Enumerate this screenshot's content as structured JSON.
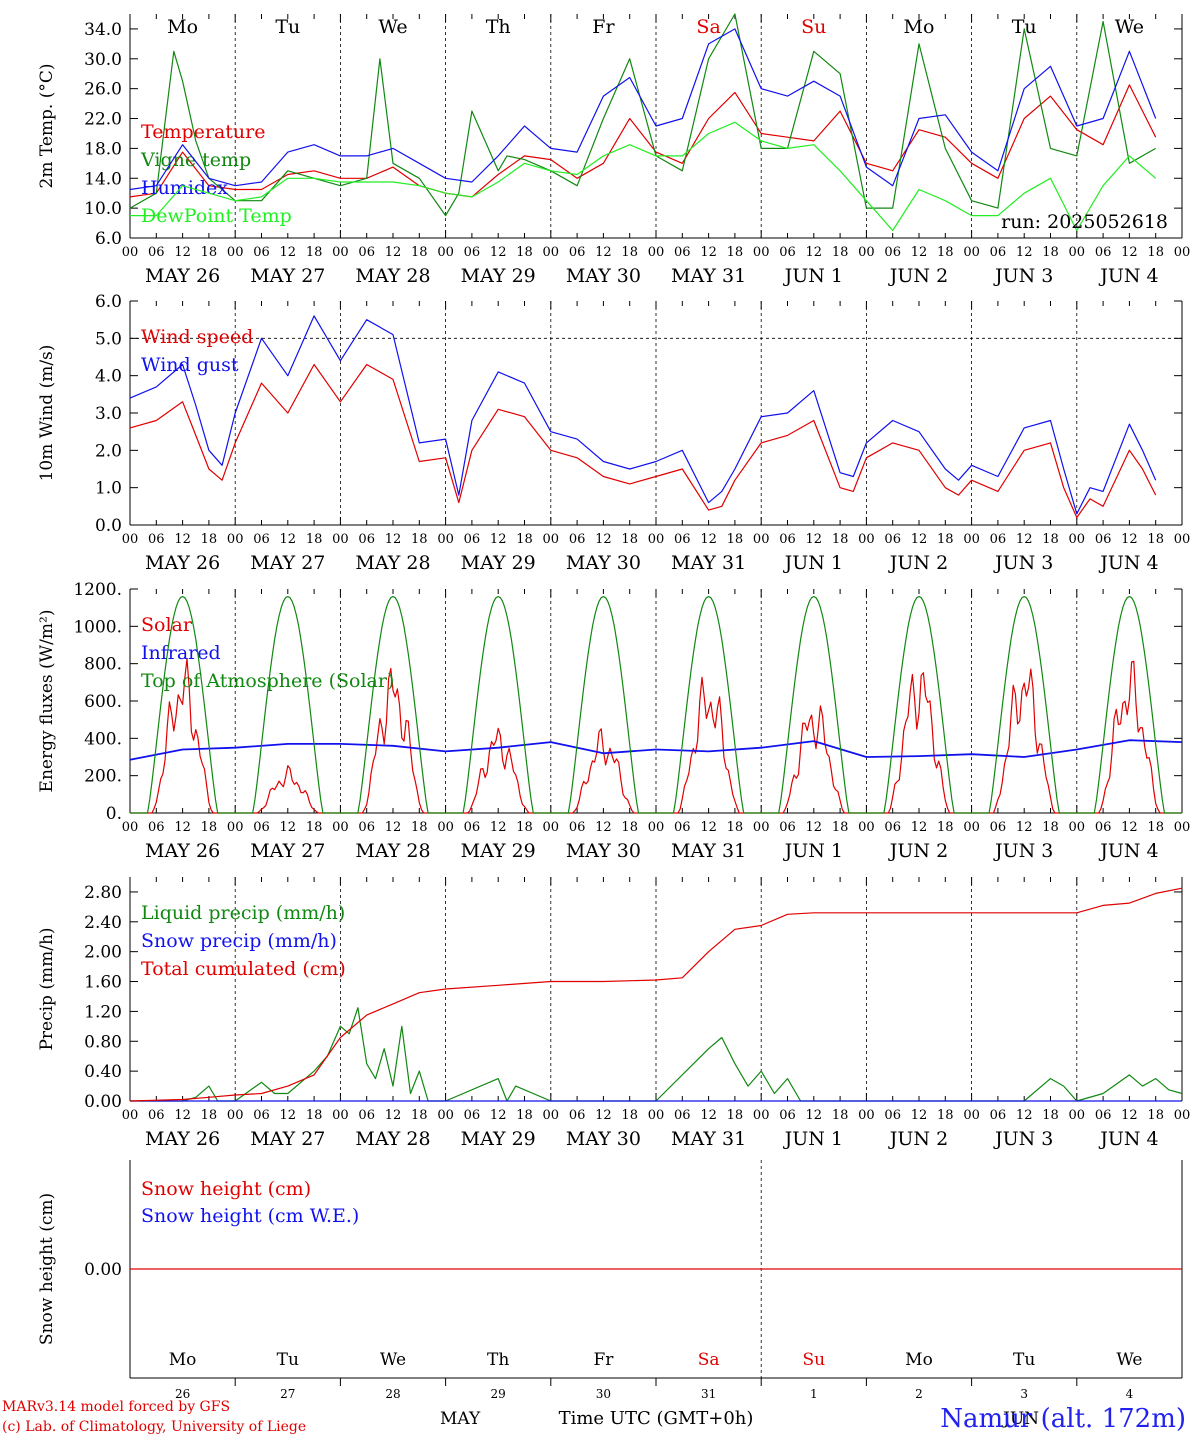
{
  "page": {
    "credit_line1": "MARv3.14 model forced by GFS",
    "credit_line2": "(c) Lab. of Climatology, University of Liege",
    "station": "Namur (alt. 172m)",
    "xlabel": "Time UTC (GMT+0h)",
    "run": "run: 2025052618"
  },
  "days": {
    "names": [
      "Mo",
      "Tu",
      "We",
      "Th",
      "Fr",
      "Sa",
      "Su",
      "Mo",
      "Tu",
      "We"
    ],
    "weekend_color": "#e00000",
    "normal_color": "#000000",
    "weekend_index": [
      5,
      6
    ],
    "dates": [
      "MAY 26",
      "MAY 27",
      "MAY 28",
      "MAY 29",
      "MAY 30",
      "MAY 31",
      "JUN  1",
      "JUN  2",
      "JUN  3",
      "JUN  4"
    ],
    "hour_ticks": [
      "00",
      "06",
      "12",
      "18"
    ],
    "final_tick": "00",
    "bottom_numbers": [
      "26",
      "27",
      "28",
      "29",
      "30",
      "31",
      "1",
      "2",
      "3",
      "4"
    ],
    "bottom_month_left": "MAY",
    "bottom_month_right": "JUN"
  },
  "chart_data": [
    {
      "id": "temp",
      "type": "line",
      "ylabel": "2m Temp. (°C)",
      "ylim": [
        6.0,
        36.0
      ],
      "yticks": [
        6.0,
        10.0,
        14.0,
        18.0,
        22.0,
        26.0,
        30.0,
        34.0
      ],
      "ytick_labels": [
        "6.0",
        "10.0",
        "14.0",
        "18.0",
        "22.0",
        "26.0",
        "30.0",
        "34.0"
      ],
      "show_day_names": true,
      "x_unit": "hours since MAY 26 00 UTC",
      "series": [
        {
          "name": "Temperature",
          "color": "#e00000",
          "x": [
            0,
            6,
            12,
            18,
            24,
            30,
            36,
            42,
            48,
            54,
            60,
            66,
            72,
            78,
            84,
            90,
            96,
            102,
            108,
            114,
            120,
            126,
            132,
            138,
            144,
            150,
            156,
            162,
            168,
            174,
            180,
            186,
            192,
            198,
            204,
            210,
            216,
            222,
            228,
            234
          ],
          "y": [
            11.5,
            12,
            17.5,
            13,
            12.5,
            12.5,
            14.5,
            15,
            14,
            14,
            15.5,
            13,
            12,
            11.5,
            14.5,
            17,
            16.5,
            14,
            16,
            22,
            17.5,
            16,
            22,
            25.5,
            20,
            19.5,
            19,
            23,
            16,
            15,
            20.5,
            19.5,
            16,
            14,
            22,
            25,
            20.5,
            18.5,
            26.5,
            19.5
          ]
        },
        {
          "name": "Vigne temp",
          "color": "#118811",
          "x": [
            0,
            6,
            10,
            12,
            15,
            18,
            24,
            30,
            36,
            42,
            48,
            54,
            57,
            60,
            66,
            72,
            75,
            78,
            84,
            86,
            90,
            96,
            102,
            108,
            114,
            120,
            126,
            132,
            138,
            144,
            150,
            156,
            162,
            168,
            174,
            180,
            186,
            192,
            198,
            204,
            210,
            216,
            222,
            228,
            234
          ],
          "y": [
            10,
            12,
            31,
            27,
            19,
            14,
            11,
            11,
            15,
            14,
            13,
            14,
            30,
            16,
            14,
            9,
            12,
            23,
            15,
            17,
            16.5,
            15,
            13,
            22,
            30,
            17,
            15,
            30,
            36,
            18,
            18,
            31,
            28,
            10,
            10,
            32,
            18,
            11,
            10,
            34,
            18,
            17,
            35,
            16,
            18
          ]
        },
        {
          "name": "Humidex",
          "color": "#1111ee",
          "x": [
            0,
            6,
            12,
            18,
            24,
            30,
            36,
            42,
            48,
            54,
            60,
            66,
            72,
            78,
            84,
            90,
            96,
            102,
            108,
            114,
            120,
            126,
            132,
            138,
            144,
            150,
            156,
            162,
            168,
            174,
            180,
            186,
            192,
            198,
            204,
            210,
            216,
            222,
            228,
            234
          ],
          "y": [
            12.5,
            13,
            18.5,
            14,
            13,
            13.5,
            17.5,
            18.5,
            17,
            17,
            18,
            16,
            14,
            13.5,
            17,
            21,
            18,
            17.5,
            25,
            27.5,
            21,
            22,
            32,
            34,
            26,
            25,
            27,
            25,
            15.5,
            13,
            22,
            22.5,
            17.5,
            15,
            26,
            29,
            21,
            22,
            31,
            22
          ]
        },
        {
          "name": "DewPoint Temp",
          "color": "#22ee22",
          "x": [
            0,
            6,
            12,
            18,
            24,
            30,
            36,
            42,
            48,
            54,
            60,
            66,
            72,
            78,
            84,
            90,
            96,
            102,
            108,
            114,
            120,
            126,
            132,
            138,
            144,
            150,
            156,
            162,
            168,
            174,
            180,
            186,
            192,
            198,
            204,
            210,
            216,
            222,
            228,
            234
          ],
          "y": [
            9,
            9,
            13,
            12,
            11,
            11.5,
            14,
            14,
            13.5,
            13.5,
            13.5,
            13,
            12,
            11.5,
            13.5,
            16,
            15,
            14.5,
            17,
            18.5,
            17,
            17,
            20,
            21.5,
            19,
            18,
            18.5,
            15,
            11,
            7,
            12.5,
            11,
            9,
            9,
            12,
            14,
            7,
            13,
            17,
            14
          ]
        }
      ]
    },
    {
      "id": "wind",
      "type": "line",
      "ylabel": "10m Wind (m/s)",
      "ylim": [
        0.0,
        6.0
      ],
      "yticks": [
        0.0,
        1.0,
        2.0,
        3.0,
        4.0,
        5.0,
        6.0
      ],
      "ytick_labels": [
        "0.0",
        "1.0",
        "2.0",
        "3.0",
        "4.0",
        "5.0",
        "6.0"
      ],
      "reference_line": 5.0,
      "show_day_names": false,
      "x_unit": "hours since MAY 26 00 UTC",
      "series": [
        {
          "name": "Wind speed",
          "color": "#e00000",
          "x": [
            0,
            6,
            12,
            15,
            18,
            21,
            24,
            30,
            36,
            42,
            48,
            54,
            60,
            66,
            72,
            75,
            78,
            84,
            90,
            96,
            102,
            108,
            114,
            120,
            126,
            132,
            135,
            138,
            144,
            150,
            156,
            162,
            165,
            168,
            174,
            180,
            186,
            189,
            192,
            198,
            204,
            210,
            213,
            216,
            219,
            222,
            228,
            231,
            234
          ],
          "y": [
            2.6,
            2.8,
            3.3,
            2.4,
            1.5,
            1.2,
            2.2,
            3.8,
            3.0,
            4.3,
            3.3,
            4.3,
            3.9,
            1.7,
            1.8,
            0.6,
            2.0,
            3.1,
            2.9,
            2.0,
            1.8,
            1.3,
            1.1,
            1.3,
            1.5,
            0.4,
            0.5,
            1.2,
            2.2,
            2.4,
            2.8,
            1.0,
            0.9,
            1.8,
            2.2,
            2.0,
            1.0,
            0.8,
            1.2,
            0.9,
            2.0,
            2.2,
            1.0,
            0.2,
            0.7,
            0.5,
            2.0,
            1.5,
            0.8
          ]
        },
        {
          "name": "Wind gust",
          "color": "#1111ee",
          "x": [
            0,
            6,
            12,
            15,
            18,
            21,
            24,
            30,
            36,
            42,
            48,
            54,
            60,
            66,
            72,
            75,
            78,
            84,
            90,
            96,
            102,
            108,
            114,
            120,
            126,
            132,
            135,
            138,
            144,
            150,
            156,
            162,
            165,
            168,
            174,
            180,
            186,
            189,
            192,
            198,
            204,
            210,
            213,
            216,
            219,
            222,
            228,
            231,
            234
          ],
          "y": [
            3.4,
            3.7,
            4.3,
            3.2,
            2.0,
            1.6,
            3.0,
            5.0,
            4.0,
            5.6,
            4.4,
            5.5,
            5.1,
            2.2,
            2.3,
            0.8,
            2.8,
            4.1,
            3.8,
            2.5,
            2.3,
            1.7,
            1.5,
            1.7,
            2.0,
            0.6,
            0.9,
            1.5,
            2.9,
            3.0,
            3.6,
            1.4,
            1.3,
            2.2,
            2.8,
            2.5,
            1.5,
            1.2,
            1.6,
            1.3,
            2.6,
            2.8,
            1.5,
            0.3,
            1.0,
            0.9,
            2.7,
            2.0,
            1.2
          ]
        }
      ]
    },
    {
      "id": "flux",
      "type": "line",
      "ylabel": "Energy fluxes (W/m²)",
      "ylim": [
        0,
        1200
      ],
      "yticks": [
        0,
        200,
        400,
        600,
        800,
        1000,
        1200
      ],
      "ytick_labels": [
        "0.",
        "200.",
        "400.",
        "600.",
        "800.",
        "1000.",
        "1200."
      ],
      "show_day_names": false,
      "x_unit": "hours since MAY 26 00 UTC",
      "toa_peak": 1160,
      "solar_daily_peak": [
        870,
        260,
        850,
        500,
        480,
        800,
        660,
        890,
        890,
        870
      ],
      "series": [
        {
          "name": "Solar",
          "color": "#e00000"
        },
        {
          "name": "Infrared",
          "color": "#1111ee",
          "x": [
            0,
            12,
            24,
            36,
            48,
            60,
            72,
            84,
            96,
            108,
            120,
            132,
            144,
            156,
            168,
            180,
            192,
            204,
            216,
            228,
            240
          ],
          "y": [
            285,
            340,
            350,
            370,
            370,
            360,
            330,
            350,
            380,
            320,
            340,
            330,
            350,
            385,
            300,
            305,
            315,
            300,
            340,
            390,
            380
          ]
        },
        {
          "name": "Top of Atmosphere (Solar)",
          "color": "#118811"
        }
      ]
    },
    {
      "id": "precip",
      "type": "line",
      "ylabel": "Precip (mm/h)",
      "ylim": [
        0.0,
        3.0
      ],
      "yticks": [
        0.0,
        0.4,
        0.8,
        1.2,
        1.6,
        2.0,
        2.4,
        2.8
      ],
      "ytick_labels": [
        "0.00",
        "0.40",
        "0.80",
        "1.20",
        "1.60",
        "2.00",
        "2.40",
        "2.80"
      ],
      "show_day_names": false,
      "x_unit": "hours since MAY 26 00 UTC",
      "series": [
        {
          "name": "Liquid precip (mm/h)",
          "color": "#118811",
          "x": [
            0,
            12,
            15,
            18,
            20,
            24,
            30,
            33,
            36,
            42,
            45,
            48,
            50,
            52,
            54,
            56,
            58,
            60,
            62,
            64,
            66,
            68,
            70,
            72,
            84,
            86,
            88,
            96,
            120,
            132,
            135,
            138,
            141,
            144,
            147,
            150,
            153,
            156,
            168,
            174,
            180,
            183,
            186,
            189,
            192,
            198,
            204,
            210,
            213,
            216,
            222,
            228,
            231,
            234,
            237,
            240
          ],
          "y": [
            0,
            0,
            0.05,
            0.2,
            0,
            0,
            0.25,
            0.1,
            0.1,
            0.4,
            0.6,
            1.0,
            0.9,
            1.25,
            0.5,
            0.3,
            0.7,
            0.2,
            1.0,
            0.1,
            0.4,
            0,
            0,
            0,
            0.3,
            0,
            0.2,
            0,
            0,
            0.7,
            0.85,
            0.5,
            0.2,
            0.4,
            0.1,
            0.3,
            0,
            0,
            0,
            0,
            0,
            0,
            0,
            0,
            0,
            0,
            0,
            0.3,
            0.2,
            0,
            0.1,
            0.35,
            0.2,
            0.3,
            0.15,
            0.1
          ]
        },
        {
          "name": "Snow precip (mm/h)",
          "color": "#1111ee",
          "x": [
            0,
            240
          ],
          "y": [
            0,
            0
          ]
        },
        {
          "name": "Total cumulated (cm)",
          "color": "#e00000",
          "x": [
            0,
            12,
            18,
            24,
            30,
            36,
            42,
            48,
            54,
            60,
            66,
            72,
            84,
            96,
            108,
            120,
            126,
            132,
            138,
            144,
            150,
            156,
            168,
            180,
            192,
            204,
            216,
            222,
            228,
            234,
            240
          ],
          "y": [
            0,
            0.02,
            0.05,
            0.08,
            0.1,
            0.2,
            0.35,
            0.85,
            1.15,
            1.3,
            1.45,
            1.5,
            1.55,
            1.6,
            1.6,
            1.62,
            1.65,
            2.0,
            2.3,
            2.35,
            2.5,
            2.52,
            2.52,
            2.52,
            2.52,
            2.52,
            2.52,
            2.62,
            2.65,
            2.78,
            2.85
          ]
        }
      ]
    },
    {
      "id": "snow",
      "type": "line",
      "ylabel": "Snow height (cm)",
      "ylim": [
        -1.0,
        1.0
      ],
      "yticks": [
        0.0
      ],
      "ytick_labels": [
        "0.00"
      ],
      "show_day_names": false,
      "x_unit": "hours since MAY 26 00 UTC",
      "series": [
        {
          "name": "Snow height (cm)",
          "color": "#e00000",
          "x": [
            0,
            240
          ],
          "y": [
            0,
            0
          ]
        },
        {
          "name": "Snow height (cm W.E.)",
          "color": "#1111ee"
        }
      ]
    }
  ]
}
